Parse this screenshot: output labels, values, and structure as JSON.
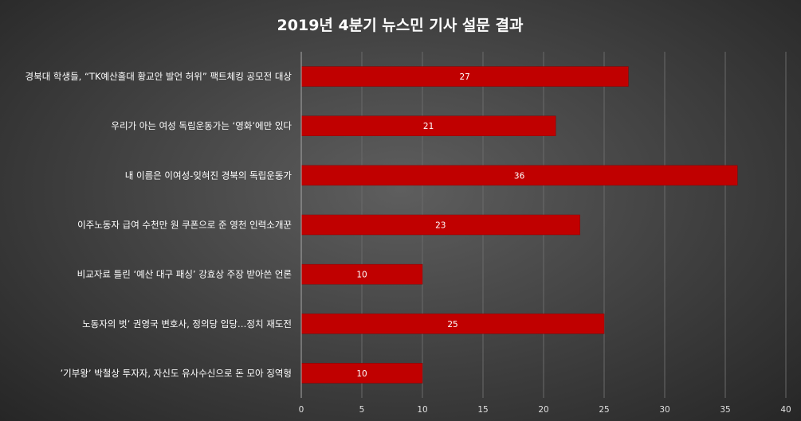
{
  "chart_data": {
    "type": "bar",
    "orientation": "horizontal",
    "title": "2019년 4분기 뉴스민 기사 설문 결과",
    "categories": [
      "경북대 학생들, “TK예산홀대 황교안 발언 허위” 팩트체킹 공모전 대상",
      "우리가 아는 여성 독립운동가는 ‘영화’에만 있다",
      "내 이름은 이여성-잊혀진 경북의 독립운동가",
      "이주노동자 급여 수천만 원 쿠폰으로 준 영천 인력소개꾼",
      "비교자료 틀린 ‘예산 대구 패싱’ 강효상 주장 받아쓴 언론",
      "노동자의 벗’ 권영국 변호사, 정의당 입당…정치 재도전",
      "’기부왕’ 박철상 투자자, 자신도 유사수신으로 돈 모아 징역형"
    ],
    "values": [
      27,
      21,
      36,
      23,
      10,
      25,
      10
    ],
    "xlim": [
      0,
      40
    ],
    "xticks": [
      0,
      5,
      10,
      15,
      20,
      25,
      30,
      35,
      40
    ],
    "grid": "vertical",
    "legend": "none",
    "colors": {
      "bar": "#c00000",
      "bar_edge": "#8a0000",
      "grid": "#6a6a6a",
      "axis": "#a8a8a8"
    }
  }
}
